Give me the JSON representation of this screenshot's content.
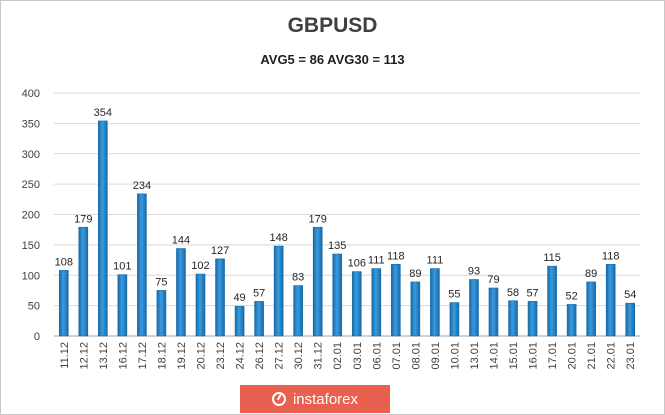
{
  "chart_data": {
    "type": "bar",
    "title": "GBPUSD",
    "subtitle": "AVG5 = 86 AVG30 = 113",
    "categories": [
      "11.12",
      "12.12",
      "13.12",
      "16.12",
      "17.12",
      "18.12",
      "19.12",
      "20.12",
      "23.12",
      "24.12",
      "26.12",
      "27.12",
      "30.12",
      "31.12",
      "02.01",
      "03.01",
      "06.01",
      "07.01",
      "08.01",
      "09.01",
      "10.01",
      "13.01",
      "14.01",
      "15.01",
      "16.01",
      "17.01",
      "20.01",
      "21.01",
      "22.01",
      "23.01"
    ],
    "values": [
      108,
      179,
      354,
      101,
      234,
      75,
      144,
      102,
      127,
      49,
      57,
      148,
      83,
      179,
      135,
      106,
      111,
      118,
      89,
      111,
      55,
      93,
      79,
      58,
      57,
      115,
      52,
      89,
      118,
      54
    ],
    "ylim": [
      0,
      400
    ],
    "yticks": [
      0,
      50,
      100,
      150,
      200,
      250,
      300,
      350,
      400
    ],
    "grid": true,
    "legend": "none",
    "bar_color": "#2e8fd4",
    "bar_color_dark": "#1769a8",
    "xlabel": "",
    "ylabel": ""
  },
  "watermark": {
    "text": "instaforex",
    "color": "#e9604f"
  }
}
